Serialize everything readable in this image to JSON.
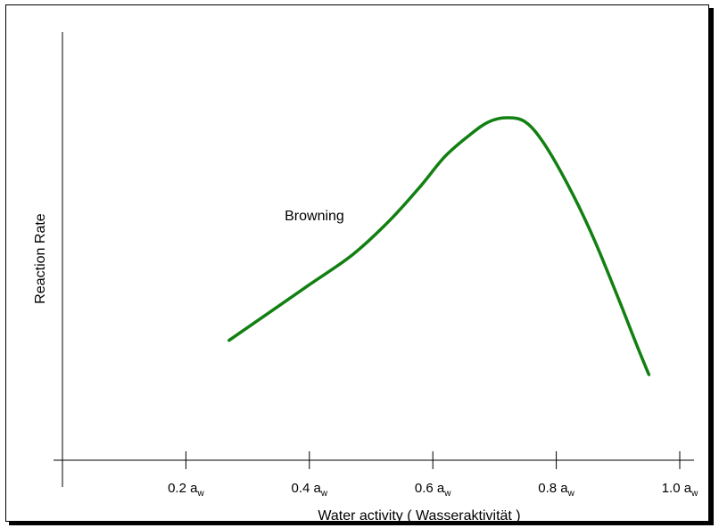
{
  "chart_data": {
    "type": "line",
    "title": "",
    "xlabel": "Water activity  ( Wasseraktivität )",
    "ylabel": "Reaction Rate",
    "xlim": [
      0,
      1.0
    ],
    "ylim": [
      0,
      1.0
    ],
    "x_ticks": [
      {
        "value": 0.2,
        "main": "0.2 a",
        "sub": "w"
      },
      {
        "value": 0.4,
        "main": "0.4 a",
        "sub": "w"
      },
      {
        "value": 0.6,
        "main": "0.6 a",
        "sub": "w"
      },
      {
        "value": 0.8,
        "main": "0.8 a",
        "sub": "w"
      },
      {
        "value": 1.0,
        "main": "1.0 a",
        "sub": "w"
      }
    ],
    "series": [
      {
        "name": "Browning",
        "color": "#118011",
        "x": [
          0.27,
          0.33,
          0.4,
          0.47,
          0.53,
          0.58,
          0.62,
          0.66,
          0.69,
          0.72,
          0.75,
          0.78,
          0.82,
          0.86,
          0.9,
          0.93,
          0.95
        ],
        "y": [
          0.28,
          0.34,
          0.41,
          0.48,
          0.56,
          0.64,
          0.71,
          0.76,
          0.79,
          0.8,
          0.79,
          0.74,
          0.64,
          0.52,
          0.38,
          0.27,
          0.2
        ]
      }
    ],
    "annotations": [
      {
        "text": "Browning",
        "x": 0.36,
        "y": 0.56
      }
    ],
    "grid": false,
    "legend": "none"
  }
}
